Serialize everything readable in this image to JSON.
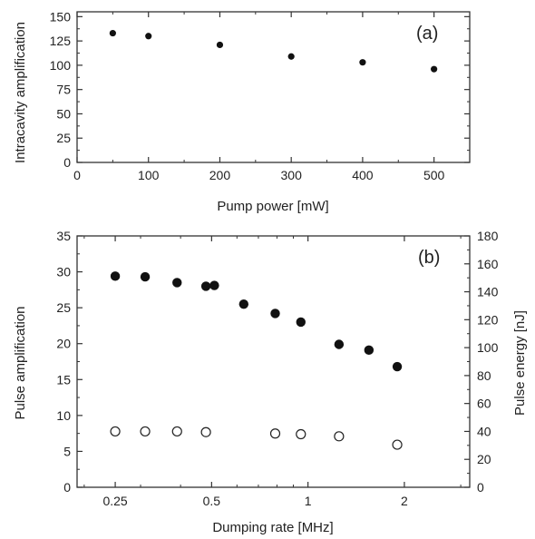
{
  "chart_data": [
    {
      "id": "a",
      "type": "scatter",
      "panel_label": "(a)",
      "xlabel": "Pump power [mW]",
      "ylabel": "Intracavity amplification",
      "xlim": [
        0,
        550
      ],
      "ylim": [
        0,
        155
      ],
      "xticks": [
        0,
        100,
        200,
        300,
        400,
        500
      ],
      "yticks": [
        0,
        25,
        50,
        75,
        100,
        125,
        150
      ],
      "series": [
        {
          "marker": "filled-small",
          "points": [
            {
              "x": 50,
              "y": 133
            },
            {
              "x": 100,
              "y": 130
            },
            {
              "x": 200,
              "y": 121
            },
            {
              "x": 300,
              "y": 109
            },
            {
              "x": 400,
              "y": 103
            },
            {
              "x": 500,
              "y": 96
            }
          ]
        }
      ]
    },
    {
      "id": "b",
      "type": "scatter",
      "panel_label": "(b)",
      "xlabel": "Dumping rate [MHz]",
      "ylabel": "Pulse amplification",
      "y2label": "Pulse energy [nJ]",
      "xscale": "log",
      "xlim": [
        0.19,
        3.2
      ],
      "ylim": [
        0,
        35
      ],
      "y2lim": [
        0,
        180
      ],
      "xticks": [
        0.25,
        0.5,
        1,
        2
      ],
      "xtick_labels": [
        "0.25",
        "0.5",
        "1",
        "2"
      ],
      "yticks": [
        0,
        5,
        10,
        15,
        20,
        25,
        30,
        35
      ],
      "y2ticks": [
        0,
        20,
        40,
        60,
        80,
        100,
        120,
        140,
        160,
        180
      ],
      "series": [
        {
          "axis": "left",
          "marker": "filled",
          "points": [
            {
              "x": 0.25,
              "y": 29.4
            },
            {
              "x": 0.31,
              "y": 29.3
            },
            {
              "x": 0.39,
              "y": 28.5
            },
            {
              "x": 0.48,
              "y": 28.0
            },
            {
              "x": 0.51,
              "y": 28.1
            },
            {
              "x": 0.63,
              "y": 25.5
            },
            {
              "x": 0.79,
              "y": 24.2
            },
            {
              "x": 0.95,
              "y": 23.0
            },
            {
              "x": 1.25,
              "y": 19.9
            },
            {
              "x": 1.55,
              "y": 19.1
            },
            {
              "x": 1.9,
              "y": 16.8
            }
          ]
        },
        {
          "axis": "right",
          "marker": "open",
          "points": [
            {
              "x": 0.25,
              "y": 40
            },
            {
              "x": 0.31,
              "y": 40
            },
            {
              "x": 0.39,
              "y": 40
            },
            {
              "x": 0.48,
              "y": 39.5
            },
            {
              "x": 0.79,
              "y": 38.5
            },
            {
              "x": 0.95,
              "y": 38
            },
            {
              "x": 1.25,
              "y": 36.5
            },
            {
              "x": 1.9,
              "y": 30.5
            }
          ]
        }
      ]
    }
  ]
}
